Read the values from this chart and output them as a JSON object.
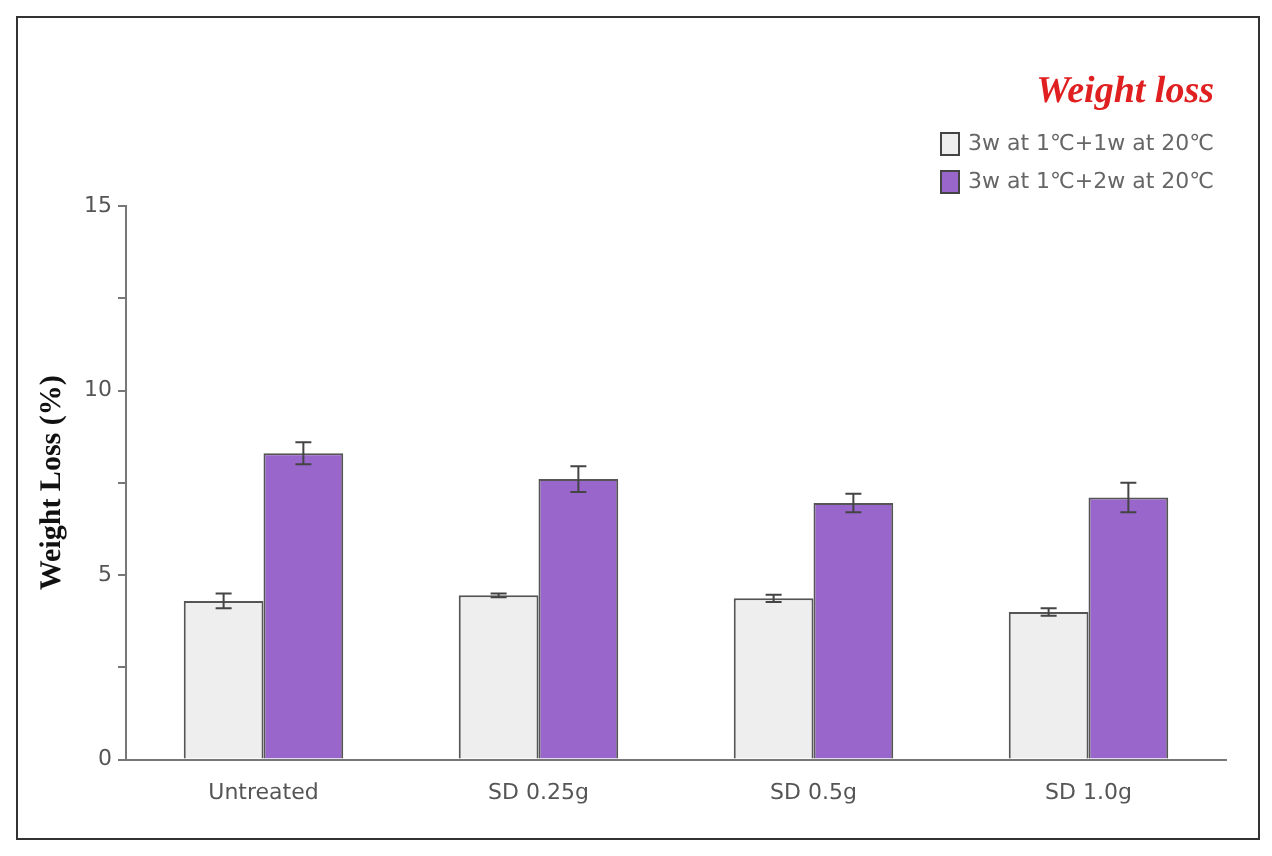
{
  "chart_data": {
    "type": "bar",
    "title": "Weight loss",
    "ylabel": "Weight Loss (%)",
    "categories": [
      "Untreated",
      "SD 0.25g",
      "SD 0.5g",
      "SD 1.0g"
    ],
    "series": [
      {
        "name": "3w at 1℃+1w at 20℃",
        "color": "#eeeeee",
        "values": [
          4.3,
          4.45,
          4.37,
          4.0
        ],
        "errors": [
          0.2,
          0.05,
          0.1,
          0.1
        ]
      },
      {
        "name": "3w at 1℃+2w at 20℃",
        "color": "#9966cc",
        "values": [
          8.3,
          7.6,
          6.95,
          7.1
        ],
        "errors": [
          0.3,
          0.35,
          0.25,
          0.4
        ]
      }
    ],
    "ylim": [
      0,
      15
    ],
    "yticks": [
      0,
      {
        "value": 2.5,
        "label": null
      },
      5,
      {
        "value": 7.5,
        "label": null
      },
      10,
      {
        "value": 12.5,
        "label": null
      },
      15
    ],
    "grid": false,
    "legend": "top right"
  }
}
